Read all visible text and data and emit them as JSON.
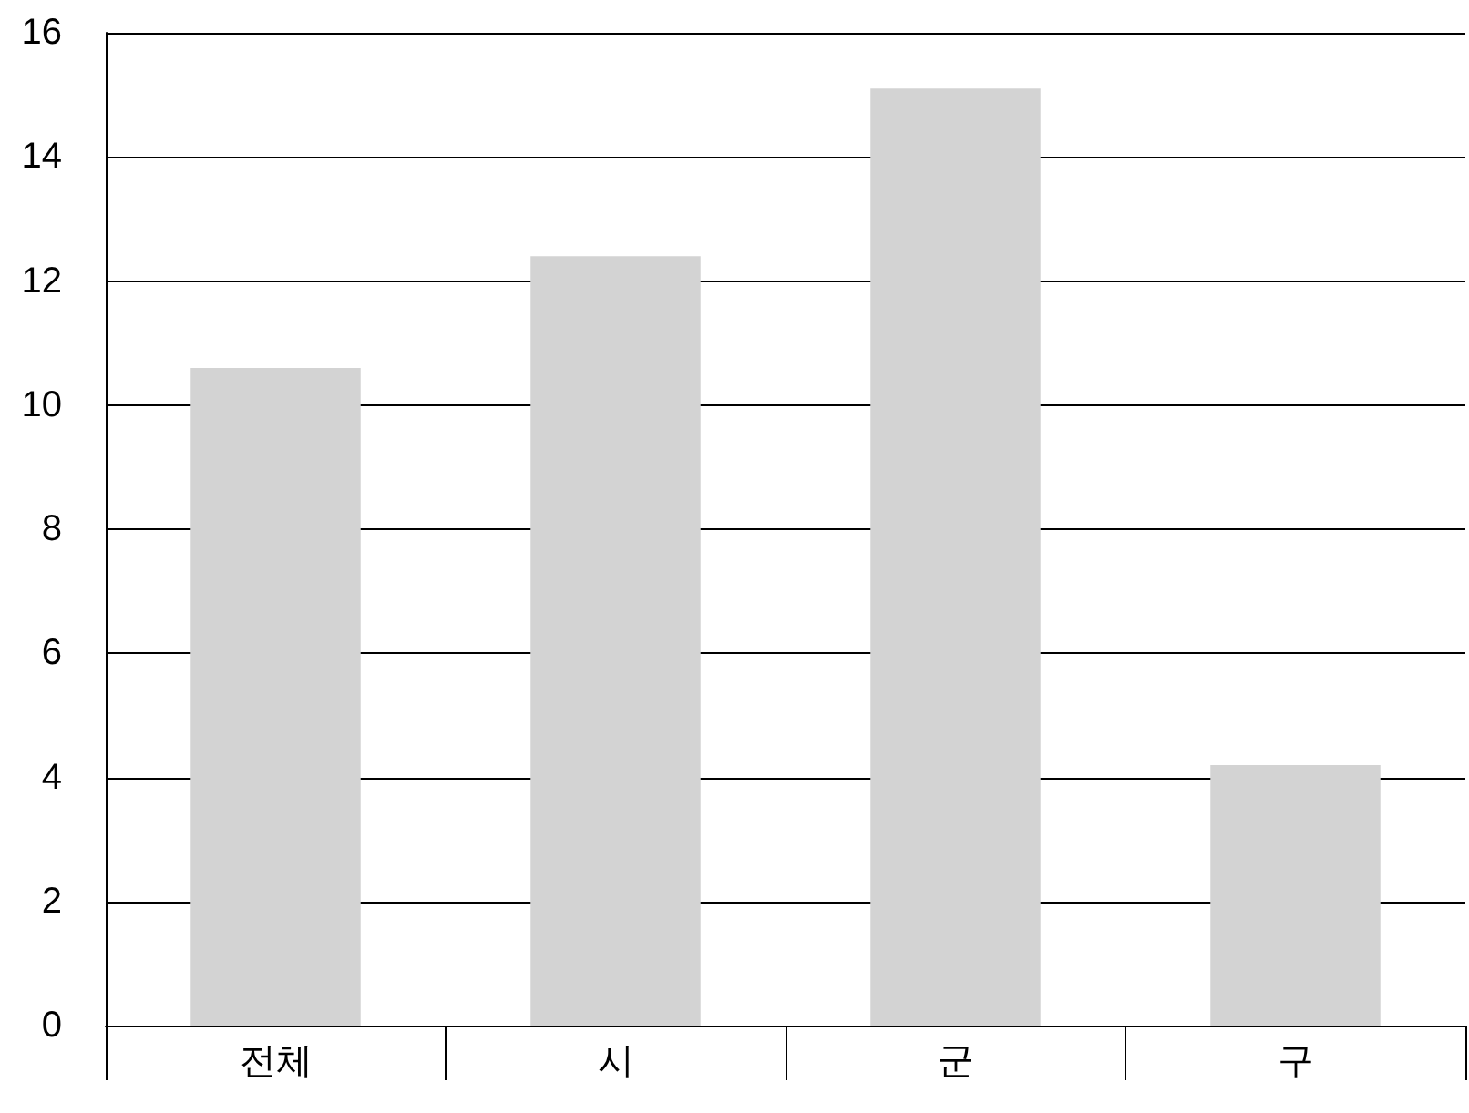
{
  "chart_data": {
    "type": "bar",
    "categories": [
      "전체",
      "시",
      "군",
      "구"
    ],
    "values": [
      10.6,
      12.4,
      15.1,
      4.2
    ],
    "color": "#d3d3d3",
    "ylim": [
      0,
      16
    ],
    "yticks": [
      0,
      2,
      4,
      6,
      8,
      10,
      12,
      14,
      16
    ],
    "grid": "y"
  }
}
